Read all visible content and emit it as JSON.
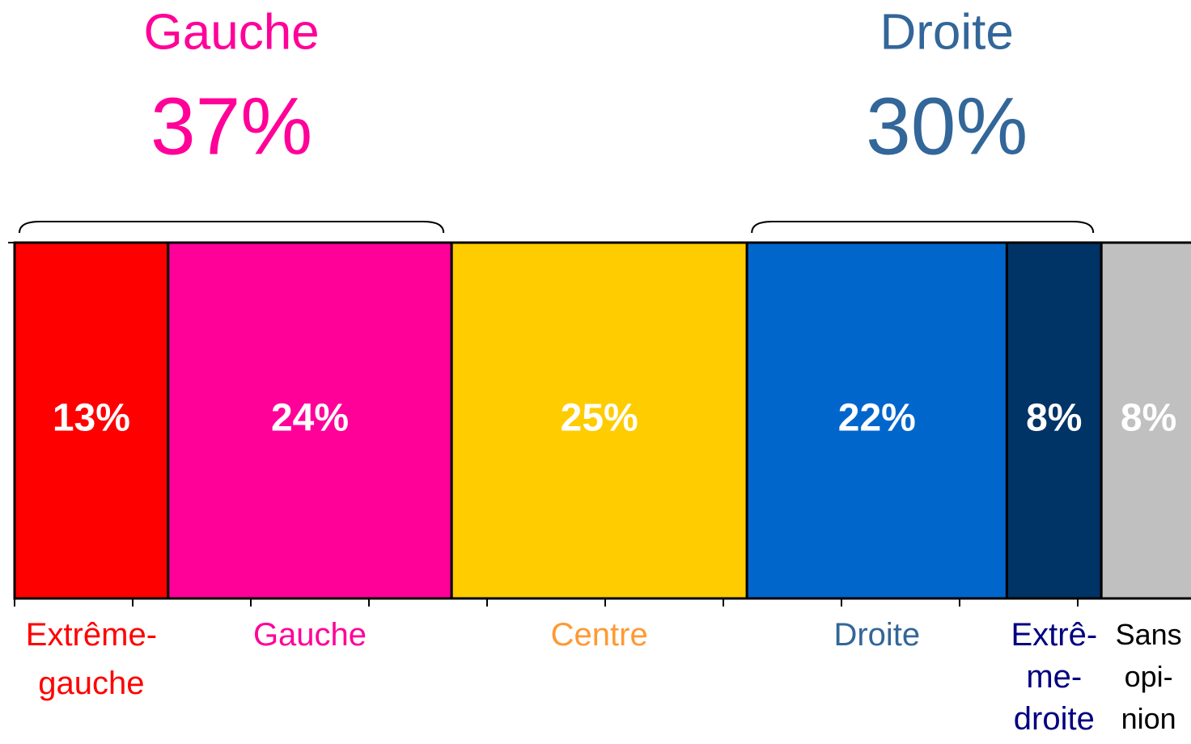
{
  "chart_data": {
    "type": "stacked-bar",
    "categories": [
      "Extrême-\ngauche",
      "Gauche",
      "Centre",
      "Droite",
      "Extrê-\nme-\ndroite",
      "Sans\nopi-\nnion"
    ],
    "values": [
      13,
      24,
      25,
      22,
      8,
      8
    ],
    "value_labels": [
      "13%",
      "24%",
      "25%",
      "22%",
      "8%",
      "8%"
    ],
    "colors": [
      "#ff0000",
      "#ff0099",
      "#ffcc00",
      "#0066cc",
      "#003366",
      "#c0c0c0"
    ],
    "label_colors": [
      "#ff0000",
      "#ff0099",
      "#ff9933",
      "#336699",
      "#000080",
      "#000000"
    ],
    "xlim": [
      0,
      100
    ],
    "xticks": [
      0,
      10,
      20,
      30,
      40,
      50,
      60,
      70,
      80,
      90,
      100
    ],
    "annotations": [
      {
        "text": "Gauche",
        "value": 37,
        "value_label": "37%",
        "color": "#ff0099"
      },
      {
        "text": "Droite",
        "value": 30,
        "value_label": "30%",
        "color": "#336699"
      }
    ]
  }
}
